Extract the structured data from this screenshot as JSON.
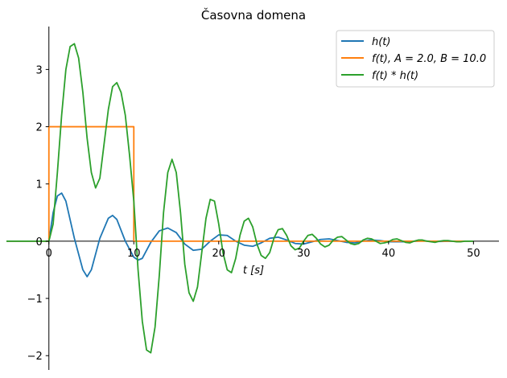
{
  "chart_data": {
    "type": "line",
    "title": "Časovna domena",
    "xlabel": "t [s]",
    "ylabel": "",
    "xlim": [
      -5,
      53
    ],
    "ylim": [
      -2.25,
      3.75
    ],
    "xticks": [
      0,
      10,
      20,
      30,
      40,
      50
    ],
    "yticks": [
      -2,
      -1,
      0,
      1,
      2,
      3
    ],
    "xtick_labels": [
      "0",
      "10",
      "20",
      "30",
      "40",
      "50"
    ],
    "ytick_labels": [
      "−2",
      "−1",
      "0",
      "1",
      "2",
      "3"
    ],
    "grid": false,
    "legend_position": "top-right",
    "series": [
      {
        "name": "h(t)",
        "color": "#1f77b4",
        "x": [
          -5,
          0,
          0.5,
          1,
          1.5,
          2,
          3,
          4,
          4.5,
          5,
          6,
          7,
          7.5,
          8,
          9,
          10,
          10.5,
          11,
          12,
          13,
          14,
          15,
          16,
          17,
          18,
          19,
          20,
          21,
          22,
          23,
          24,
          25,
          26,
          27,
          28,
          29,
          30,
          31,
          32,
          33,
          34,
          35,
          36,
          37,
          38,
          39,
          40,
          42,
          44,
          46,
          48,
          50
        ],
        "y": [
          0,
          0,
          0.5,
          0.79,
          0.84,
          0.7,
          0.05,
          -0.5,
          -0.62,
          -0.5,
          0.05,
          0.4,
          0.45,
          0.38,
          0.0,
          -0.28,
          -0.33,
          -0.3,
          -0.02,
          0.18,
          0.23,
          0.15,
          -0.05,
          -0.16,
          -0.14,
          0.0,
          0.11,
          0.1,
          0.0,
          -0.07,
          -0.09,
          -0.03,
          0.05,
          0.07,
          0.02,
          -0.04,
          -0.05,
          -0.01,
          0.03,
          0.04,
          0.01,
          -0.02,
          -0.03,
          0.0,
          0.02,
          0.01,
          -0.01,
          -0.01,
          0.005,
          -0.005,
          0.0,
          0.0
        ]
      },
      {
        "name": "f(t), A = 2.0, B = 10.0",
        "color": "#ff7f0e",
        "x": [
          -5,
          0,
          0,
          10,
          10,
          50
        ],
        "y": [
          0,
          0,
          2,
          2,
          0,
          0
        ]
      },
      {
        "name": "f(t) * h(t)",
        "color": "#2ca02c",
        "x": [
          -5,
          0,
          0.5,
          1,
          1.5,
          2,
          2.5,
          3,
          3.5,
          4,
          4.5,
          5,
          5.5,
          6,
          6.5,
          7,
          7.5,
          8,
          8.5,
          9,
          9.5,
          10,
          10.5,
          11,
          11.5,
          12,
          12.5,
          13,
          13.5,
          14,
          14.5,
          15,
          15.5,
          16,
          16.5,
          17,
          17.5,
          18,
          18.5,
          19,
          19.5,
          20,
          20.5,
          21,
          21.5,
          22,
          22.5,
          23,
          23.5,
          24,
          24.5,
          25,
          25.5,
          26,
          26.5,
          27,
          27.5,
          28,
          28.5,
          29,
          29.5,
          30,
          30.5,
          31,
          31.5,
          32,
          32.5,
          33,
          33.5,
          34,
          34.5,
          35,
          35.5,
          36,
          36.5,
          37,
          37.5,
          38,
          38.5,
          39,
          39.5,
          40,
          40.5,
          41,
          41.5,
          42,
          42.5,
          43,
          43.5,
          44,
          44.5,
          45,
          45.5,
          46,
          46.5,
          47,
          47.5,
          48,
          48.5,
          49,
          49.5,
          50
        ],
        "y": [
          0,
          0,
          0.3,
          1.2,
          2.2,
          3.0,
          3.4,
          3.45,
          3.2,
          2.6,
          1.8,
          1.2,
          0.93,
          1.1,
          1.7,
          2.3,
          2.7,
          2.77,
          2.6,
          2.2,
          1.5,
          0.7,
          -0.5,
          -1.4,
          -1.9,
          -1.95,
          -1.5,
          -0.6,
          0.5,
          1.2,
          1.43,
          1.2,
          0.5,
          -0.4,
          -0.9,
          -1.05,
          -0.8,
          -0.2,
          0.4,
          0.73,
          0.7,
          0.3,
          -0.2,
          -0.5,
          -0.55,
          -0.3,
          0.1,
          0.35,
          0.4,
          0.25,
          -0.05,
          -0.25,
          -0.3,
          -0.2,
          0.05,
          0.2,
          0.22,
          0.1,
          -0.08,
          -0.15,
          -0.12,
          0.0,
          0.1,
          0.12,
          0.05,
          -0.05,
          -0.1,
          -0.07,
          0.02,
          0.07,
          0.08,
          0.02,
          -0.04,
          -0.06,
          -0.04,
          0.02,
          0.05,
          0.04,
          0.0,
          -0.04,
          -0.03,
          -0.01,
          0.03,
          0.04,
          0.01,
          -0.02,
          -0.03,
          0.0,
          0.02,
          0.02,
          0.0,
          -0.01,
          -0.02,
          0.0,
          0.01,
          0.01,
          0.0,
          -0.01,
          -0.01,
          0.0,
          0.0,
          0.0
        ]
      }
    ]
  }
}
